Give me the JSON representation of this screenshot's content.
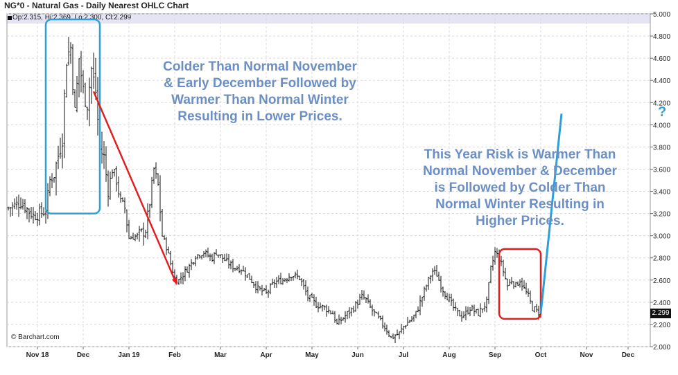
{
  "header": {
    "title": "NG*0 - Natural Gas - Daily Nearest OHLC Chart",
    "ohlc": "Op:2.315, Hi:2.369, Lo:2.300, Cl:2.299"
  },
  "credit": "© Barchart.com",
  "last_price_label": "2.299",
  "annotations": {
    "left": [
      "Colder Than Normal November",
      "& Early December Followed by",
      "Warmer Than Normal Winter",
      "Resulting in Lower Prices."
    ],
    "right": [
      "This Year Risk is Warmer Than",
      "Normal November & December",
      "is Followed by Colder Than",
      "Normal Winter Resulting in",
      "Higher Prices."
    ],
    "question_mark": "?"
  },
  "colors": {
    "bars": "#111111",
    "annotation_text": "#6b8fc4",
    "downtrend_arrow": "#e02020",
    "forecast_line": "#2d9fd8",
    "box_left": "#2d9fd8",
    "box_right": "#e02020",
    "header_band": "#e4e4f4",
    "grid": "#d8d8d8"
  },
  "chart_data": {
    "type": "ohlc",
    "title": "NG*0 - Natural Gas - Daily Nearest OHLC Chart",
    "xlabel": "",
    "ylabel": "",
    "ylim": [
      2.0,
      5.0
    ],
    "y_ticks": [
      "2.000",
      "2.200",
      "2.400",
      "2.600",
      "2.800",
      "3.000",
      "3.200",
      "3.400",
      "3.600",
      "3.800",
      "4.000",
      "4.200",
      "4.400",
      "4.600",
      "4.800",
      "5.000"
    ],
    "x_ticks": [
      "Nov 18",
      "Dec",
      "Jan 19",
      "Feb",
      "Mar",
      "Apr",
      "May",
      "Jun",
      "Jul",
      "Aug",
      "Sep",
      "Oct",
      "Nov",
      "Dec"
    ],
    "grid": true,
    "x_index_range": [
      0,
      274
    ],
    "x_tick_index": [
      14,
      36,
      58,
      80,
      102,
      124,
      146,
      168,
      190,
      212,
      234,
      256,
      278,
      298
    ],
    "close_path": [
      [
        0,
        3.25
      ],
      [
        6,
        3.3
      ],
      [
        12,
        3.18
      ],
      [
        18,
        3.22
      ],
      [
        20,
        3.5
      ],
      [
        22,
        3.55
      ],
      [
        26,
        3.9
      ],
      [
        28,
        4.6
      ],
      [
        30,
        4.7
      ],
      [
        32,
        4.1
      ],
      [
        34,
        4.6
      ],
      [
        36,
        4.3
      ],
      [
        38,
        4.2
      ],
      [
        40,
        4.5
      ],
      [
        42,
        4.3
      ],
      [
        44,
        3.8
      ],
      [
        46,
        3.7
      ],
      [
        48,
        3.4
      ],
      [
        50,
        3.6
      ],
      [
        52,
        3.5
      ],
      [
        54,
        3.3
      ],
      [
        56,
        3.25
      ],
      [
        58,
        2.98
      ],
      [
        62,
        3.0
      ],
      [
        66,
        3.05
      ],
      [
        68,
        3.3
      ],
      [
        70,
        3.6
      ],
      [
        72,
        3.45
      ],
      [
        74,
        3.0
      ],
      [
        76,
        2.9
      ],
      [
        78,
        2.75
      ],
      [
        80,
        2.62
      ],
      [
        82,
        2.6
      ],
      [
        84,
        2.65
      ],
      [
        86,
        2.7
      ],
      [
        88,
        2.75
      ],
      [
        90,
        2.82
      ],
      [
        94,
        2.85
      ],
      [
        96,
        2.82
      ],
      [
        98,
        2.8
      ],
      [
        100,
        2.85
      ],
      [
        104,
        2.78
      ],
      [
        108,
        2.72
      ],
      [
        112,
        2.7
      ],
      [
        116,
        2.62
      ],
      [
        120,
        2.52
      ],
      [
        124,
        2.48
      ],
      [
        128,
        2.58
      ],
      [
        132,
        2.6
      ],
      [
        136,
        2.65
      ],
      [
        140,
        2.62
      ],
      [
        144,
        2.45
      ],
      [
        148,
        2.38
      ],
      [
        152,
        2.35
      ],
      [
        156,
        2.3
      ],
      [
        158,
        2.2
      ],
      [
        162,
        2.28
      ],
      [
        166,
        2.35
      ],
      [
        168,
        2.4
      ],
      [
        170,
        2.45
      ],
      [
        172,
        2.42
      ],
      [
        174,
        2.35
      ],
      [
        176,
        2.3
      ],
      [
        178,
        2.25
      ],
      [
        180,
        2.2
      ],
      [
        182,
        2.15
      ],
      [
        184,
        2.08
      ],
      [
        186,
        2.1
      ],
      [
        188,
        2.12
      ],
      [
        190,
        2.18
      ],
      [
        192,
        2.22
      ],
      [
        194,
        2.25
      ],
      [
        196,
        2.3
      ],
      [
        198,
        2.4
      ],
      [
        200,
        2.5
      ],
      [
        202,
        2.6
      ],
      [
        204,
        2.68
      ],
      [
        206,
        2.65
      ],
      [
        208,
        2.55
      ],
      [
        210,
        2.48
      ],
      [
        212,
        2.42
      ],
      [
        214,
        2.35
      ],
      [
        216,
        2.3
      ],
      [
        218,
        2.28
      ],
      [
        220,
        2.3
      ],
      [
        222,
        2.35
      ],
      [
        224,
        2.32
      ],
      [
        226,
        2.3
      ],
      [
        228,
        2.35
      ],
      [
        230,
        2.4
      ],
      [
        232,
        2.7
      ],
      [
        234,
        2.85
      ],
      [
        236,
        2.8
      ],
      [
        238,
        2.68
      ],
      [
        240,
        2.55
      ],
      [
        242,
        2.6
      ],
      [
        244,
        2.55
      ],
      [
        246,
        2.6
      ],
      [
        248,
        2.52
      ],
      [
        250,
        2.45
      ],
      [
        252,
        2.35
      ],
      [
        254,
        2.32
      ],
      [
        256,
        2.3
      ]
    ],
    "arrow_down": {
      "from": [
        41,
        4.3
      ],
      "to": [
        81,
        2.56
      ]
    },
    "forecast_line": {
      "from": [
        256,
        2.3
      ],
      "to": [
        266,
        4.1
      ]
    },
    "box_left": {
      "x_range": [
        18,
        44
      ],
      "y_range": [
        3.2,
        4.95
      ]
    },
    "box_right": {
      "x_range": [
        236,
        256
      ],
      "y_range": [
        2.25,
        2.88
      ]
    }
  }
}
